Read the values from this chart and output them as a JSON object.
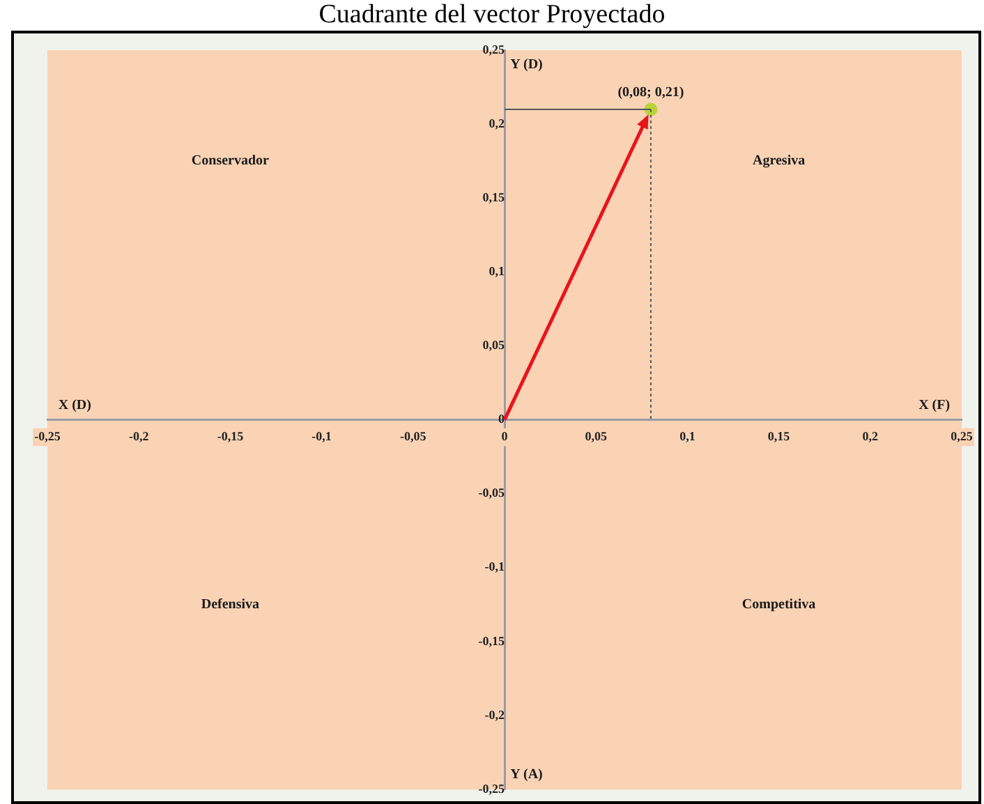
{
  "chart_data": {
    "title": "Cuadrante del vector Proyectado",
    "type": "scatter",
    "x": [
      0.08
    ],
    "series": [
      {
        "color": "#b8d43a",
        "values": [
          0.21
        ]
      }
    ],
    "marker": "circle",
    "grid": false,
    "legend": false,
    "xlim": [
      -0.25,
      0.25
    ],
    "ylim": [
      -0.25,
      0.25
    ],
    "xticks": [
      {
        "value": -0.25,
        "label": "-0,25"
      },
      {
        "value": -0.2,
        "label": "-0,2"
      },
      {
        "value": -0.15,
        "label": "-0,15"
      },
      {
        "value": -0.1,
        "label": "-0,1"
      },
      {
        "value": -0.05,
        "label": "-0,05"
      },
      0,
      {
        "value": 0.05,
        "label": "0,05"
      },
      {
        "value": 0.1,
        "label": "0,1"
      },
      {
        "value": 0.15,
        "label": "0,15"
      },
      {
        "value": 0.2,
        "label": "0,2"
      },
      {
        "value": 0.25,
        "label": "0,25"
      }
    ],
    "yticks": [
      {
        "value": -0.25,
        "label": "-0,25"
      },
      {
        "value": -0.2,
        "label": "-0,2"
      },
      {
        "value": -0.15,
        "label": "-0,15"
      },
      {
        "value": -0.1,
        "label": "-0,1"
      },
      {
        "value": -0.05,
        "label": "-0,05"
      },
      0,
      {
        "value": 0.05,
        "label": "0,05"
      },
      {
        "value": 0.1,
        "label": "0,1"
      },
      {
        "value": 0.15,
        "label": "0,15"
      },
      {
        "value": 0.2,
        "label": "0,2"
      },
      {
        "value": 0.25,
        "label": "0,25"
      }
    ],
    "annotations": [
      {
        "text": "(0,08; 0,21)",
        "x": 0.08,
        "y": 0.21
      },
      "Conservador",
      "Agresiva",
      "Defensiva",
      "Competitiva",
      "X (D)",
      "X (F)",
      "Y (D)",
      "Y (A)"
    ]
  }
}
